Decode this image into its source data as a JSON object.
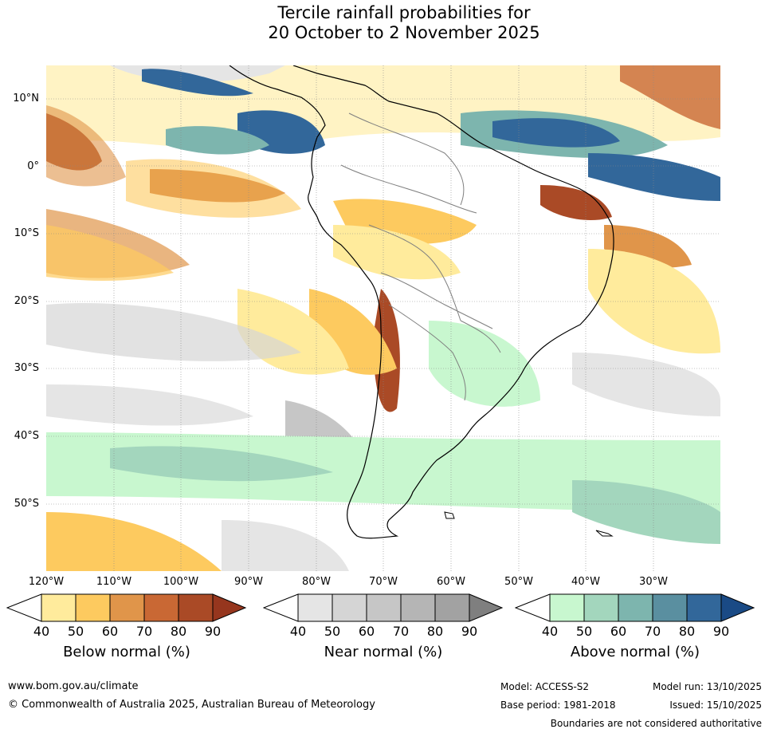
{
  "title": {
    "line1": "Tercile rainfall probabilities for",
    "line2": "20 October to 2 November 2025"
  },
  "lat_labels": [
    "10°N",
    "0°",
    "10°S",
    "20°S",
    "30°S",
    "40°S",
    "50°S"
  ],
  "lon_labels": [
    "120°W",
    "110°W",
    "100°W",
    "90°W",
    "80°W",
    "70°W",
    "60°W",
    "50°W",
    "40°W",
    "30°W"
  ],
  "legend": {
    "below": {
      "label": "Below normal (%)",
      "ticks": [
        "40",
        "50",
        "60",
        "70",
        "80",
        "90"
      ],
      "colors": [
        "#ffffff",
        "#ffeb9c",
        "#fdca5f",
        "#e0954a",
        "#c96834",
        "#aa4a26",
        "#96361e"
      ]
    },
    "near": {
      "label": "Near normal (%)",
      "ticks": [
        "40",
        "50",
        "60",
        "70",
        "80",
        "90"
      ],
      "colors": [
        "#ffffff",
        "#e5e5e5",
        "#d5d5d5",
        "#c6c6c6",
        "#b5b5b5",
        "#a2a2a2",
        "#7f7f7f"
      ]
    },
    "above": {
      "label": "Above normal (%)",
      "ticks": [
        "40",
        "50",
        "60",
        "70",
        "80",
        "90"
      ],
      "colors": [
        "#ffffff",
        "#c8f7cf",
        "#a3d6bd",
        "#7db5ae",
        "#5a8fa0",
        "#32679a",
        "#1a4a85"
      ]
    }
  },
  "footer": {
    "website": "www.bom.gov.au/climate",
    "copyright": "© Commonwealth of Australia 2025, Australian Bureau of Meteorology",
    "model": "Model: ACCESS-S2",
    "model_run": "Model run: 13/10/2025",
    "base_period": "Base period: 1981-2018",
    "issued": "Issued: 15/10/2025",
    "disclaimer": "Boundaries are not considered authoritative"
  }
}
